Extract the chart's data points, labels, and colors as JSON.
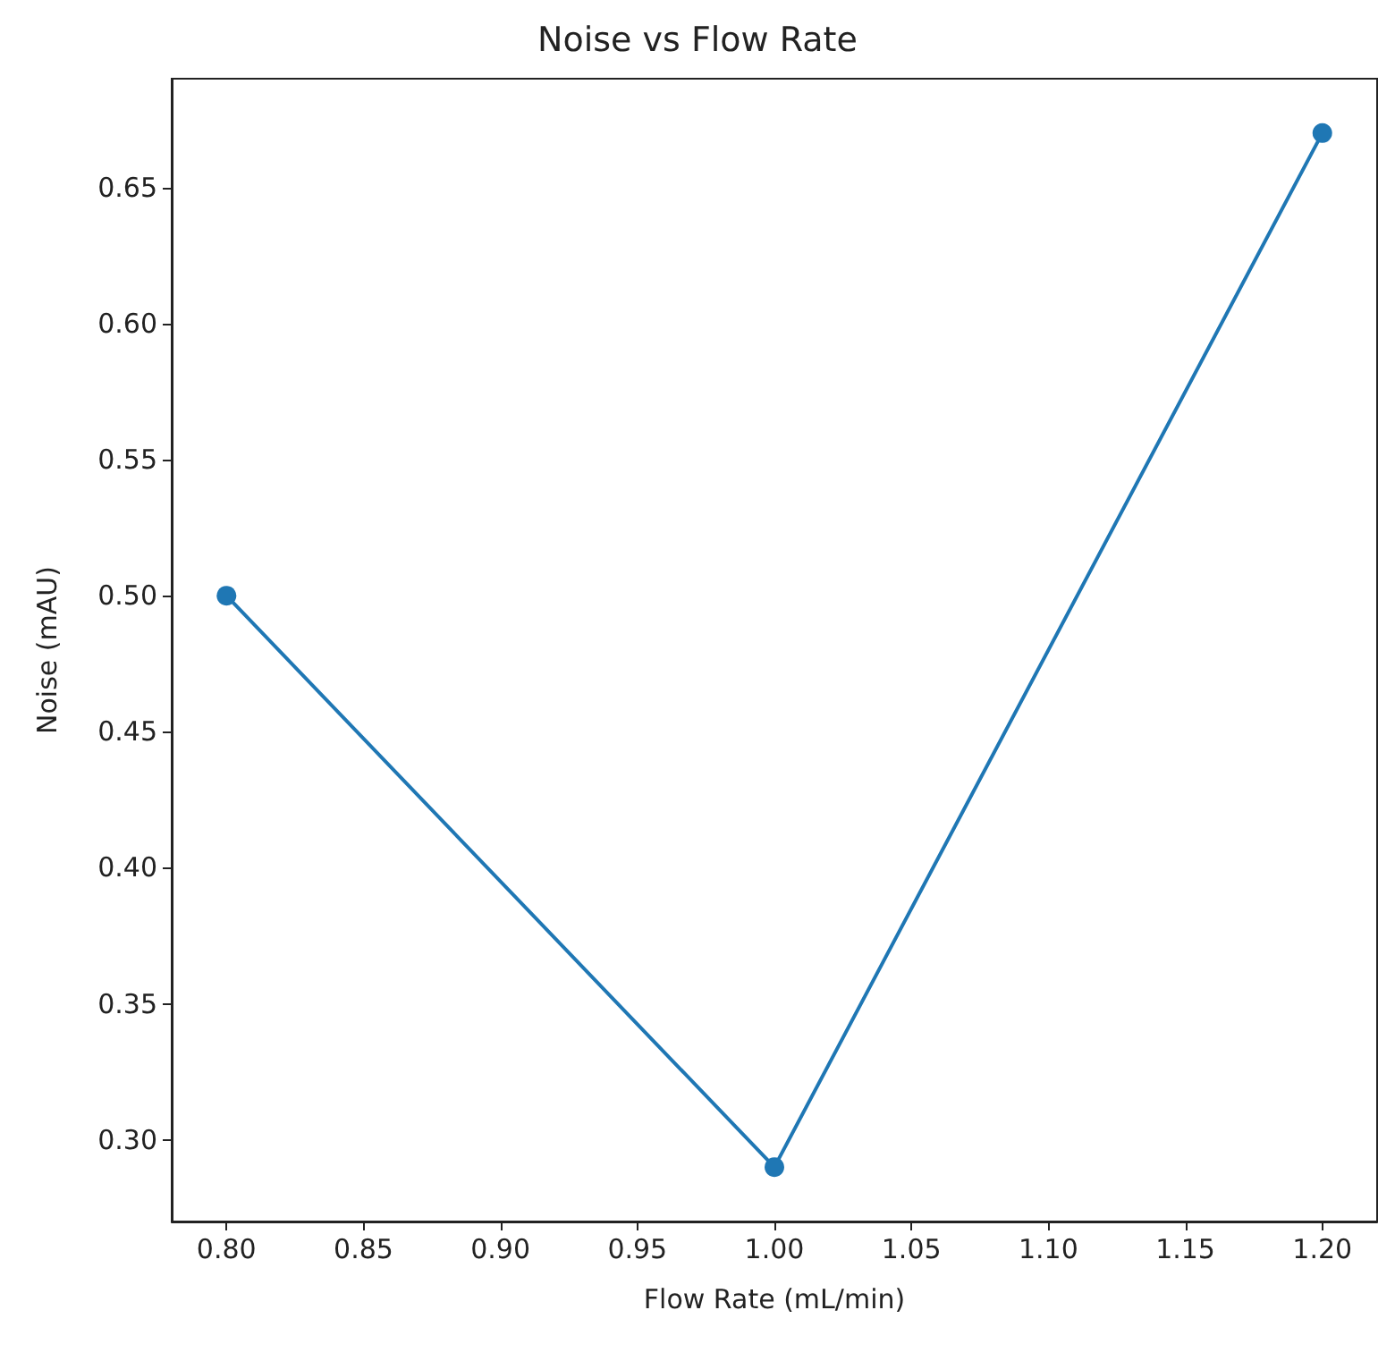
{
  "chart_data": {
    "type": "line",
    "title": "Noise vs Flow Rate",
    "xlabel": "Flow Rate (mL/min)",
    "ylabel": "Noise (mAU)",
    "x": [
      0.8,
      1.0,
      1.2
    ],
    "series": [
      {
        "color": "#1f77b4",
        "values": [
          0.5,
          0.29,
          0.67
        ]
      }
    ],
    "xlim": [
      0.78,
      1.22
    ],
    "xticks": [
      {
        "value": 0.8,
        "label": "0.80"
      },
      {
        "value": 0.85,
        "label": "0.85"
      },
      {
        "value": 0.9,
        "label": "0.90"
      },
      {
        "value": 0.95,
        "label": "0.95"
      },
      {
        "value": 1.0,
        "label": "1.00"
      },
      {
        "value": 1.05,
        "label": "1.05"
      },
      {
        "value": 1.1,
        "label": "1.10"
      },
      {
        "value": 1.15,
        "label": "1.15"
      },
      {
        "value": 1.2,
        "label": "1.20"
      }
    ],
    "ylim": [
      0.27,
      0.69
    ],
    "yticks": [
      {
        "value": 0.3,
        "label": "0.30"
      },
      {
        "value": 0.35,
        "label": "0.35"
      },
      {
        "value": 0.4,
        "label": "0.40"
      },
      {
        "value": 0.45,
        "label": "0.45"
      },
      {
        "value": 0.5,
        "label": "0.50"
      },
      {
        "value": 0.55,
        "label": "0.55"
      },
      {
        "value": 0.6,
        "label": "0.60"
      },
      {
        "value": 0.65,
        "label": "0.65"
      }
    ],
    "grid": false,
    "marker": "circle",
    "line_style": "solid"
  }
}
